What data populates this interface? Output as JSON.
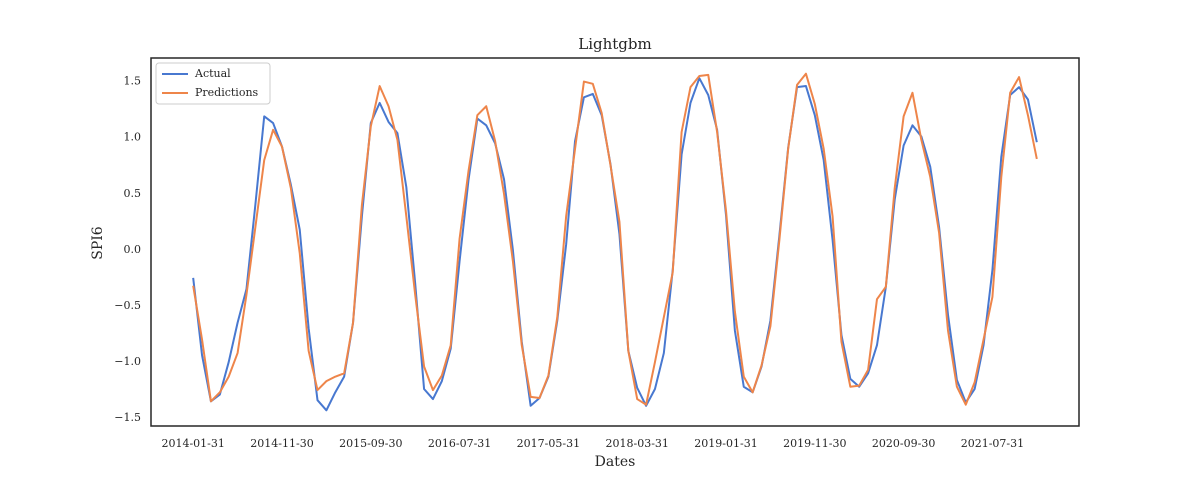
{
  "chart_data": {
    "type": "line",
    "title": "Lightgbm",
    "xlabel": "Dates",
    "ylabel": "SPI6",
    "x": [
      "2014-01-31",
      "2014-02-28",
      "2014-03-31",
      "2014-04-30",
      "2014-05-31",
      "2014-06-30",
      "2014-07-31",
      "2014-08-31",
      "2014-09-30",
      "2014-10-31",
      "2014-11-30",
      "2014-12-31",
      "2015-01-31",
      "2015-02-28",
      "2015-03-31",
      "2015-04-30",
      "2015-05-31",
      "2015-06-30",
      "2015-07-31",
      "2015-08-31",
      "2015-09-30",
      "2015-10-31",
      "2015-11-30",
      "2015-12-31",
      "2016-01-31",
      "2016-02-29",
      "2016-03-31",
      "2016-04-30",
      "2016-05-31",
      "2016-06-30",
      "2016-07-31",
      "2016-08-31",
      "2016-09-30",
      "2016-10-31",
      "2016-11-30",
      "2016-12-31",
      "2017-01-31",
      "2017-02-28",
      "2017-03-31",
      "2017-04-30",
      "2017-05-31",
      "2017-06-30",
      "2017-07-31",
      "2017-08-31",
      "2017-09-30",
      "2017-10-31",
      "2017-11-30",
      "2017-12-31",
      "2018-01-31",
      "2018-02-28",
      "2018-03-31",
      "2018-04-30",
      "2018-05-31",
      "2018-06-30",
      "2018-07-31",
      "2018-08-31",
      "2018-09-30",
      "2018-10-31",
      "2018-11-30",
      "2018-12-31",
      "2019-01-31",
      "2019-02-28",
      "2019-03-31",
      "2019-04-30",
      "2019-05-31",
      "2019-06-30",
      "2019-07-31",
      "2019-08-31",
      "2019-09-30",
      "2019-10-31",
      "2019-11-30",
      "2019-12-31",
      "2020-01-31",
      "2020-02-29",
      "2020-03-31",
      "2020-04-30",
      "2020-05-31",
      "2020-06-30",
      "2020-07-31",
      "2020-08-31",
      "2020-09-30",
      "2020-10-31",
      "2020-11-30",
      "2020-12-31",
      "2021-01-31",
      "2021-02-28",
      "2021-03-31",
      "2021-04-30",
      "2021-05-31",
      "2021-06-30",
      "2021-07-31",
      "2021-08-31",
      "2021-09-30",
      "2021-10-31",
      "2021-11-30",
      "2021-12-31"
    ],
    "series": [
      {
        "name": "Actual",
        "color": "#4878d0",
        "values": [
          -0.25,
          -0.94,
          -1.35,
          -1.29,
          -1.0,
          -0.65,
          -0.35,
          0.4,
          1.19,
          1.13,
          0.92,
          0.58,
          0.18,
          -0.7,
          -1.34,
          -1.43,
          -1.27,
          -1.13,
          -0.65,
          0.3,
          1.13,
          1.31,
          1.14,
          1.04,
          0.56,
          -0.3,
          -1.24,
          -1.33,
          -1.17,
          -0.88,
          -0.1,
          0.62,
          1.17,
          1.11,
          0.95,
          0.63,
          0.0,
          -0.82,
          -1.39,
          -1.32,
          -1.13,
          -0.63,
          0.05,
          0.97,
          1.36,
          1.39,
          1.2,
          0.76,
          0.14,
          -0.9,
          -1.23,
          -1.39,
          -1.24,
          -0.92,
          -0.18,
          0.85,
          1.31,
          1.53,
          1.38,
          1.07,
          0.31,
          -0.72,
          -1.22,
          -1.27,
          -1.04,
          -0.63,
          0.12,
          0.91,
          1.45,
          1.46,
          1.2,
          0.8,
          0.09,
          -0.76,
          -1.15,
          -1.22,
          -1.1,
          -0.85,
          -0.33,
          0.45,
          0.93,
          1.11,
          1.01,
          0.74,
          0.2,
          -0.58,
          -1.16,
          -1.36,
          -1.24,
          -0.85,
          -0.18,
          0.83,
          1.38,
          1.45,
          1.34,
          0.96
        ]
      },
      {
        "name": "Predictions",
        "color": "#ee854a",
        "values": [
          -0.32,
          -0.8,
          -1.35,
          -1.27,
          -1.13,
          -0.92,
          -0.4,
          0.2,
          0.8,
          1.07,
          0.92,
          0.55,
          -0.03,
          -0.9,
          -1.25,
          -1.17,
          -1.13,
          -1.1,
          -0.65,
          0.4,
          1.1,
          1.46,
          1.28,
          0.98,
          0.3,
          -0.4,
          -1.04,
          -1.25,
          -1.12,
          -0.85,
          0.1,
          0.7,
          1.2,
          1.28,
          0.97,
          0.5,
          -0.1,
          -0.85,
          -1.31,
          -1.32,
          -1.12,
          -0.6,
          0.3,
          0.9,
          1.5,
          1.48,
          1.22,
          0.75,
          0.25,
          -0.9,
          -1.33,
          -1.38,
          -1.0,
          -0.6,
          -0.2,
          1.05,
          1.45,
          1.55,
          1.56,
          1.05,
          0.35,
          -0.55,
          -1.13,
          -1.27,
          -1.03,
          -0.68,
          0.08,
          0.9,
          1.47,
          1.57,
          1.3,
          0.9,
          0.3,
          -0.82,
          -1.22,
          -1.21,
          -1.07,
          -0.44,
          -0.33,
          0.55,
          1.19,
          1.4,
          0.98,
          0.65,
          0.15,
          -0.72,
          -1.22,
          -1.38,
          -1.18,
          -0.8,
          -0.42,
          0.65,
          1.4,
          1.54,
          1.2,
          0.81
        ]
      }
    ],
    "xticks": [
      "2014-01-31",
      "2014-11-30",
      "2015-09-30",
      "2016-07-31",
      "2017-05-31",
      "2018-03-31",
      "2019-01-31",
      "2019-11-30",
      "2020-09-30",
      "2021-07-31"
    ],
    "ylim": [
      -1.57,
      1.71
    ],
    "yticks": [
      {
        "value": -1.5,
        "label": "−1.5"
      },
      {
        "value": -1.0,
        "label": "−1.0"
      },
      {
        "value": -0.5,
        "label": "−0.5"
      },
      {
        "value": 0,
        "label": "0.0"
      },
      0.5,
      {
        "value": 1.0,
        "label": "1.0"
      },
      1.5
    ],
    "legend": "upper left",
    "grid": false
  }
}
